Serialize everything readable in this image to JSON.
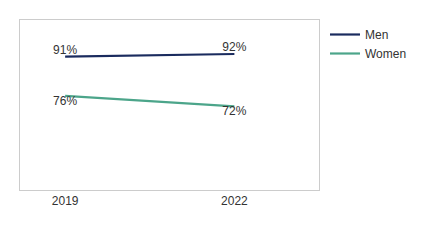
{
  "chart_data": {
    "type": "line",
    "x": [
      2019,
      2022
    ],
    "series": [
      {
        "name": "Men",
        "color": "#1a2b5e",
        "values": [
          91,
          92
        ],
        "value_labels": [
          "91%",
          "92%"
        ]
      },
      {
        "name": "Women",
        "color": "#4ca58a",
        "values": [
          76,
          72
        ],
        "value_labels": [
          "76%",
          "72%"
        ]
      }
    ],
    "xlim": [
      2018.2,
      2023.5
    ],
    "xticks": [
      2019,
      2022
    ],
    "ylim": [
      40,
      105
    ],
    "tick_labels": "x",
    "data_labels": true,
    "grid": false,
    "legend": "upper right"
  }
}
